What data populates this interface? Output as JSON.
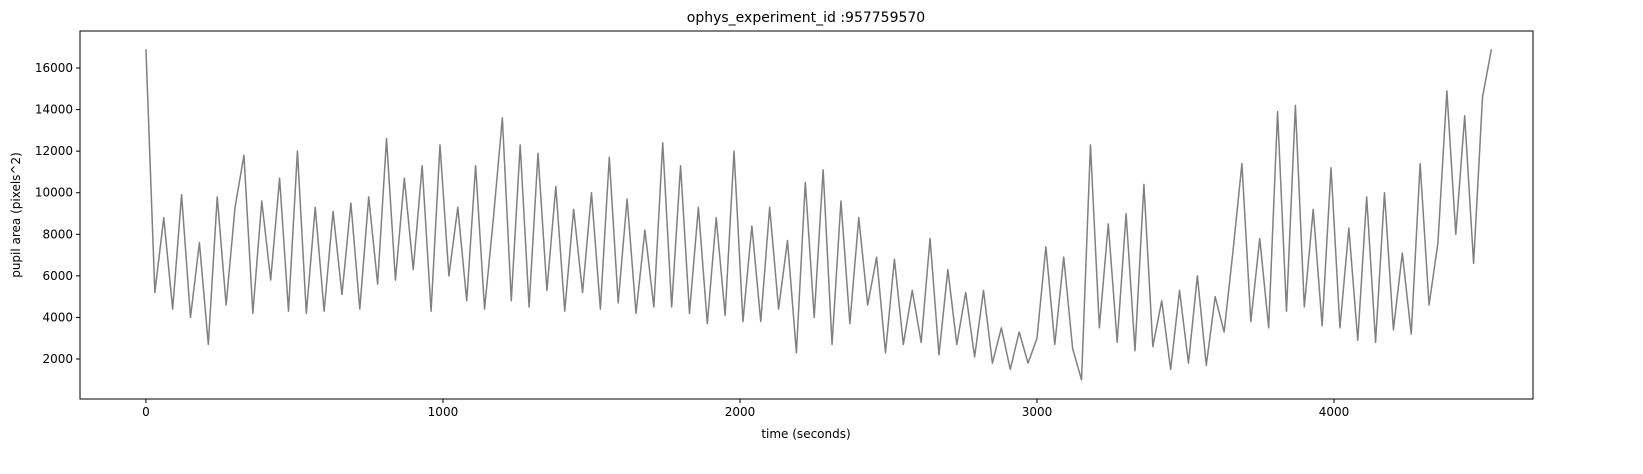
{
  "chart_data": {
    "type": "line",
    "title": "ophys_experiment_id :957759570",
    "xlabel": "time (seconds)",
    "ylabel": "pupil area (pixels^2)",
    "x": [
      0,
      30,
      60,
      90,
      120,
      150,
      180,
      210,
      240,
      270,
      300,
      330,
      360,
      390,
      420,
      450,
      480,
      510,
      540,
      570,
      600,
      630,
      660,
      690,
      720,
      750,
      780,
      810,
      840,
      870,
      900,
      930,
      960,
      990,
      1020,
      1050,
      1080,
      1110,
      1140,
      1170,
      1200,
      1230,
      1260,
      1290,
      1320,
      1350,
      1380,
      1410,
      1440,
      1470,
      1500,
      1530,
      1560,
      1590,
      1620,
      1650,
      1680,
      1710,
      1740,
      1770,
      1800,
      1830,
      1860,
      1890,
      1920,
      1950,
      1980,
      2010,
      2040,
      2070,
      2100,
      2130,
      2160,
      2190,
      2220,
      2250,
      2280,
      2310,
      2340,
      2370,
      2400,
      2430,
      2460,
      2490,
      2520,
      2550,
      2580,
      2610,
      2640,
      2670,
      2700,
      2730,
      2760,
      2790,
      2820,
      2850,
      2880,
      2910,
      2940,
      2970,
      3000,
      3030,
      3060,
      3090,
      3120,
      3150,
      3180,
      3210,
      3240,
      3270,
      3300,
      3330,
      3360,
      3390,
      3420,
      3450,
      3480,
      3510,
      3540,
      3570,
      3600,
      3630,
      3660,
      3690,
      3720,
      3750,
      3780,
      3810,
      3840,
      3870,
      3900,
      3930,
      3960,
      3990,
      4020,
      4050,
      4080,
      4110,
      4140,
      4170,
      4200,
      4230,
      4260,
      4290,
      4320,
      4350,
      4380,
      4410,
      4440,
      4470,
      4500,
      4530
    ],
    "series": [
      {
        "name": "pupil area",
        "color": "#808080",
        "values": [
          16900,
          5200,
          8800,
          4400,
          9900,
          4000,
          7600,
          2700,
          9800,
          4600,
          9300,
          11800,
          4200,
          9600,
          5800,
          10700,
          4300,
          12000,
          4200,
          9300,
          4300,
          9100,
          5100,
          9500,
          4400,
          9800,
          5600,
          12600,
          5800,
          10700,
          6300,
          11300,
          4300,
          12300,
          6000,
          9300,
          4800,
          11300,
          4400,
          8800,
          13600,
          4800,
          12300,
          4500,
          11900,
          5300,
          10300,
          4300,
          9200,
          5200,
          10000,
          4400,
          11700,
          4700,
          9700,
          4200,
          8200,
          4500,
          12400,
          4500,
          11300,
          4200,
          9300,
          3700,
          8800,
          4100,
          12000,
          3800,
          8400,
          3800,
          9300,
          4400,
          7700,
          2300,
          10500,
          4000,
          11100,
          2700,
          9600,
          3700,
          8800,
          4600,
          6900,
          2300,
          6800,
          2700,
          5300,
          2800,
          7800,
          2200,
          6300,
          2700,
          5200,
          2100,
          5300,
          1800,
          3500,
          1500,
          3300,
          1800,
          3000,
          7400,
          2700,
          6900,
          2500,
          1000,
          12300,
          3500,
          8500,
          2800,
          9000,
          2400,
          10400,
          2600,
          4800,
          1500,
          5300,
          1800,
          6000,
          1700,
          5000,
          3300,
          7200,
          11400,
          3800,
          7800,
          3500,
          13900,
          4300,
          14200,
          4500,
          9200,
          3600,
          11200,
          3500,
          8300,
          2900,
          9800,
          2800,
          10000,
          3400,
          7100,
          3200,
          11400,
          4600,
          7600,
          14900,
          8000,
          13700,
          6600,
          14600,
          16900
        ]
      }
    ],
    "xlim": [
      -222,
      4670
    ],
    "ylim": [
      76,
      17780
    ],
    "xticks": [
      0,
      1000,
      2000,
      3000,
      4000
    ],
    "yticks": [
      2000,
      4000,
      6000,
      8000,
      10000,
      12000,
      14000,
      16000
    ]
  }
}
